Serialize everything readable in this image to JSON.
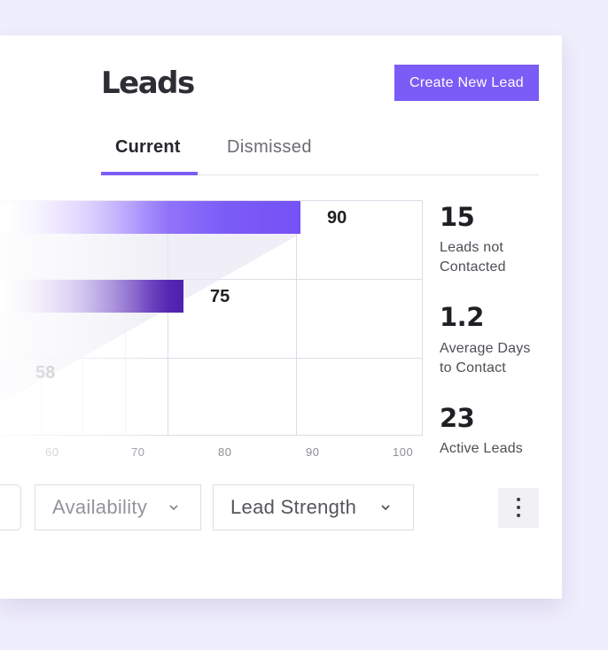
{
  "page": {
    "title": "Leads",
    "create_button_label": "Create New Lead"
  },
  "tabs": [
    {
      "label": "Current",
      "active": true
    },
    {
      "label": "Dismissed",
      "active": false
    }
  ],
  "chart_data": {
    "type": "bar",
    "orientation": "horizontal",
    "values": [
      90,
      75,
      58
    ],
    "value_labels": [
      "90",
      "75",
      "58"
    ],
    "xlim": [
      50,
      100
    ],
    "x_ticks": [
      "60",
      "70",
      "80",
      "90",
      "100"
    ]
  },
  "stats": [
    {
      "value": "15",
      "label": "Leads not\nContacted"
    },
    {
      "value": "1.2",
      "label": "Average Days\nto Contact"
    },
    {
      "value": "23",
      "label": "Active Leads"
    }
  ],
  "filters": [
    {
      "label": ""
    },
    {
      "label": "Availability"
    },
    {
      "label": "Lead Strength"
    }
  ],
  "colors": {
    "accent": "#7c5cf7",
    "dark_bar": "#4f20ad",
    "background": "#efeefc"
  },
  "icons": {
    "chevron": "chevron-down-icon",
    "more": "more-vertical-icon"
  }
}
